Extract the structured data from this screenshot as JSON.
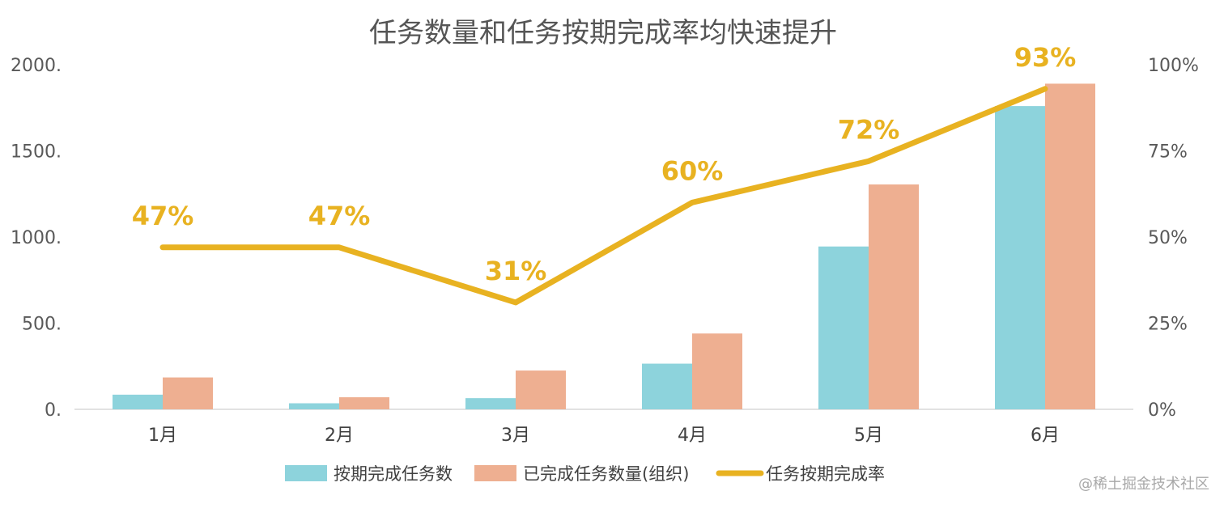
{
  "chart_data": {
    "type": "bar",
    "title": "任务数量和任务按期完成率均快速提升",
    "categories": [
      "1月",
      "2月",
      "3月",
      "4月",
      "5月",
      "6月"
    ],
    "series": [
      {
        "name": "按期完成任务数",
        "type": "bar",
        "axis": "left",
        "color": "#8DD3DC",
        "values": [
          85,
          35,
          65,
          265,
          945,
          1760
        ]
      },
      {
        "name": "已完成任务数量(组织)",
        "type": "bar",
        "axis": "left",
        "color": "#EEAF91",
        "values": [
          185,
          70,
          225,
          440,
          1305,
          1890
        ]
      },
      {
        "name": "任务按期完成率",
        "type": "line",
        "axis": "right",
        "color": "#E8B221",
        "values": [
          47,
          47,
          31,
          60,
          72,
          93
        ],
        "labels": [
          "47%",
          "47%",
          "31%",
          "60%",
          "72%",
          "93%"
        ]
      }
    ],
    "y_left": {
      "ylim": [
        0,
        2000
      ],
      "ticks": [
        0,
        500,
        1000,
        1500,
        2000
      ],
      "tick_labels": [
        "0.",
        "500.",
        "1000.",
        "1500.",
        "2000."
      ]
    },
    "y_right": {
      "ylim": [
        0,
        100
      ],
      "ticks": [
        0,
        25,
        50,
        75,
        100
      ],
      "tick_labels": [
        "0%",
        "25%",
        "50%",
        "75%",
        "100%"
      ]
    },
    "legend_position": "bottom",
    "grid": false
  },
  "watermark": "@稀土掘金技术社区"
}
